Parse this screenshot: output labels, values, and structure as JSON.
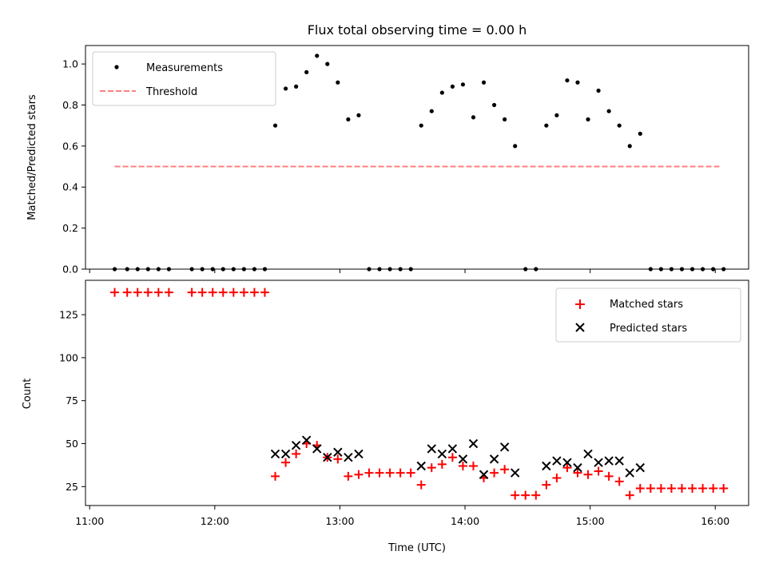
{
  "chart_data": [
    {
      "type": "scatter",
      "title": "Flux total observing time = 0.00 h",
      "ylabel": "Matched/Predicted stars",
      "xlabel": "",
      "xlim": [
        "10:58",
        "16:16"
      ],
      "ylim": [
        0,
        1.09
      ],
      "x_ticks": [
        "11:00",
        "12:00",
        "13:00",
        "14:00",
        "15:00",
        "16:00"
      ],
      "y_ticks": [
        "0.0",
        "0.2",
        "0.4",
        "0.6",
        "0.8",
        "1.0"
      ],
      "legend_position": "upper left",
      "grid": false,
      "series": [
        {
          "name": "Measurements",
          "marker": "dot",
          "color": "#000000",
          "points": [
            [
              "11:12",
              0
            ],
            [
              "11:18",
              0
            ],
            [
              "11:23",
              0
            ],
            [
              "11:28",
              0
            ],
            [
              "11:33",
              0
            ],
            [
              "11:38",
              0
            ],
            [
              "11:49",
              0
            ],
            [
              "11:54",
              0
            ],
            [
              "11:59",
              0
            ],
            [
              "12:04",
              0
            ],
            [
              "12:09",
              0
            ],
            [
              "12:14",
              0
            ],
            [
              "12:19",
              0
            ],
            [
              "12:24",
              0
            ],
            [
              "12:29",
              0.7
            ],
            [
              "12:34",
              0.88
            ],
            [
              "12:39",
              0.89
            ],
            [
              "12:44",
              0.96
            ],
            [
              "12:49",
              1.04
            ],
            [
              "12:54",
              1.0
            ],
            [
              "12:59",
              0.91
            ],
            [
              "13:04",
              0.73
            ],
            [
              "13:09",
              0.75
            ],
            [
              "13:14",
              0
            ],
            [
              "13:19",
              0
            ],
            [
              "13:24",
              0
            ],
            [
              "13:29",
              0
            ],
            [
              "13:34",
              0
            ],
            [
              "13:39",
              0.7
            ],
            [
              "13:44",
              0.77
            ],
            [
              "13:49",
              0.86
            ],
            [
              "13:54",
              0.89
            ],
            [
              "13:59",
              0.9
            ],
            [
              "14:04",
              0.74
            ],
            [
              "14:09",
              0.91
            ],
            [
              "14:14",
              0.8
            ],
            [
              "14:19",
              0.73
            ],
            [
              "14:24",
              0.6
            ],
            [
              "14:29",
              0
            ],
            [
              "14:34",
              0
            ],
            [
              "14:39",
              0.7
            ],
            [
              "14:44",
              0.75
            ],
            [
              "14:49",
              0.92
            ],
            [
              "14:54",
              0.91
            ],
            [
              "14:59",
              0.73
            ],
            [
              "15:04",
              0.87
            ],
            [
              "15:09",
              0.77
            ],
            [
              "15:14",
              0.7
            ],
            [
              "15:19",
              0.6
            ],
            [
              "15:24",
              0.66
            ],
            [
              "15:29",
              0
            ],
            [
              "15:34",
              0
            ],
            [
              "15:39",
              0
            ],
            [
              "15:44",
              0
            ],
            [
              "15:49",
              0
            ],
            [
              "15:54",
              0
            ],
            [
              "15:59",
              0
            ],
            [
              "16:04",
              0
            ]
          ]
        },
        {
          "name": "Threshold",
          "marker": "dashed-line",
          "color": "#ff7f7f",
          "points": [
            [
              "11:12",
              0.5
            ],
            [
              "16:02",
              0.5
            ]
          ]
        }
      ]
    },
    {
      "type": "scatter",
      "title": "",
      "ylabel": "Count",
      "xlabel": "Time (UTC)",
      "xlim": [
        "10:58",
        "16:16"
      ],
      "ylim": [
        14,
        145
      ],
      "x_ticks": [
        "11:00",
        "12:00",
        "13:00",
        "14:00",
        "15:00",
        "16:00"
      ],
      "y_ticks": [
        "25",
        "50",
        "75",
        "100",
        "125"
      ],
      "legend_position": "upper right",
      "grid": false,
      "series": [
        {
          "name": "Matched stars",
          "marker": "plus",
          "color": "#ff0000",
          "points": [
            [
              "11:12",
              138
            ],
            [
              "11:18",
              138
            ],
            [
              "11:23",
              138
            ],
            [
              "11:28",
              138
            ],
            [
              "11:33",
              138
            ],
            [
              "11:38",
              138
            ],
            [
              "11:49",
              138
            ],
            [
              "11:54",
              138
            ],
            [
              "11:59",
              138
            ],
            [
              "12:04",
              138
            ],
            [
              "12:09",
              138
            ],
            [
              "12:14",
              138
            ],
            [
              "12:19",
              138
            ],
            [
              "12:24",
              138
            ],
            [
              "12:29",
              31
            ],
            [
              "12:34",
              39
            ],
            [
              "12:39",
              44
            ],
            [
              "12:44",
              50
            ],
            [
              "12:49",
              49
            ],
            [
              "12:54",
              42
            ],
            [
              "12:59",
              41
            ],
            [
              "13:04",
              31
            ],
            [
              "13:09",
              32
            ],
            [
              "13:14",
              33
            ],
            [
              "13:19",
              33
            ],
            [
              "13:24",
              33
            ],
            [
              "13:29",
              33
            ],
            [
              "13:34",
              33
            ],
            [
              "13:39",
              26
            ],
            [
              "13:44",
              36
            ],
            [
              "13:49",
              38
            ],
            [
              "13:54",
              42
            ],
            [
              "13:59",
              37
            ],
            [
              "14:04",
              37
            ],
            [
              "14:09",
              30
            ],
            [
              "14:14",
              33
            ],
            [
              "14:19",
              35
            ],
            [
              "14:24",
              20
            ],
            [
              "14:29",
              20
            ],
            [
              "14:34",
              20
            ],
            [
              "14:39",
              26
            ],
            [
              "14:44",
              30
            ],
            [
              "14:49",
              36
            ],
            [
              "14:54",
              33
            ],
            [
              "14:59",
              32
            ],
            [
              "15:04",
              34
            ],
            [
              "15:09",
              31
            ],
            [
              "15:14",
              28
            ],
            [
              "15:19",
              20
            ],
            [
              "15:24",
              24
            ],
            [
              "15:29",
              24
            ],
            [
              "15:34",
              24
            ],
            [
              "15:39",
              24
            ],
            [
              "15:44",
              24
            ],
            [
              "15:49",
              24
            ],
            [
              "15:54",
              24
            ],
            [
              "15:59",
              24
            ],
            [
              "16:04",
              24
            ]
          ]
        },
        {
          "name": "Predicted stars",
          "marker": "x",
          "color": "#000000",
          "points": [
            [
              "12:29",
              44
            ],
            [
              "12:34",
              44
            ],
            [
              "12:39",
              49
            ],
            [
              "12:44",
              52
            ],
            [
              "12:49",
              47
            ],
            [
              "12:54",
              42
            ],
            [
              "12:59",
              45
            ],
            [
              "13:04",
              42
            ],
            [
              "13:09",
              44
            ],
            [
              "13:39",
              37
            ],
            [
              "13:44",
              47
            ],
            [
              "13:49",
              44
            ],
            [
              "13:54",
              47
            ],
            [
              "13:59",
              41
            ],
            [
              "14:04",
              50
            ],
            [
              "14:09",
              32
            ],
            [
              "14:14",
              41
            ],
            [
              "14:19",
              48
            ],
            [
              "14:24",
              33
            ],
            [
              "14:39",
              37
            ],
            [
              "14:44",
              40
            ],
            [
              "14:49",
              39
            ],
            [
              "14:54",
              36
            ],
            [
              "14:59",
              44
            ],
            [
              "15:04",
              39
            ],
            [
              "15:09",
              40
            ],
            [
              "15:14",
              40
            ],
            [
              "15:19",
              33
            ],
            [
              "15:24",
              36
            ]
          ]
        }
      ]
    }
  ]
}
